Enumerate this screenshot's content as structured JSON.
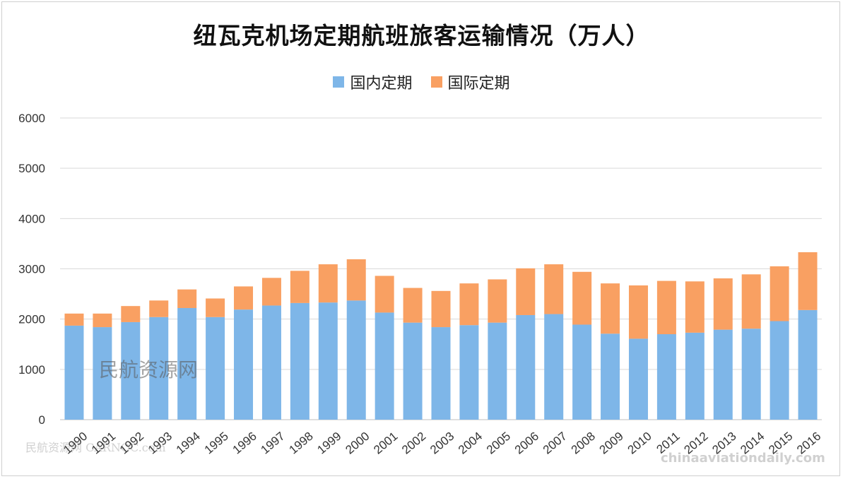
{
  "chart_data": {
    "type": "bar",
    "stacked": true,
    "title": "纽瓦克机场定期航班旅客运输情况（万人）",
    "xlabel": "",
    "ylabel": "",
    "ylim": [
      0,
      6000
    ],
    "yticks": [
      0,
      1000,
      2000,
      3000,
      4000,
      5000,
      6000
    ],
    "grid": true,
    "legend_position": "top",
    "categories": [
      "1990",
      "1991",
      "1992",
      "1993",
      "1994",
      "1995",
      "1996",
      "1997",
      "1998",
      "1999",
      "2000",
      "2001",
      "2002",
      "2003",
      "2004",
      "2005",
      "2006",
      "2007",
      "2008",
      "2009",
      "2010",
      "2011",
      "2012",
      "2013",
      "2014",
      "2015",
      "2016"
    ],
    "series": [
      {
        "name": "国内定期",
        "color": "#7eb6e8",
        "values": [
          1870,
          1840,
          1940,
          2040,
          2220,
          2040,
          2190,
          2270,
          2320,
          2330,
          2370,
          2130,
          1930,
          1840,
          1880,
          1930,
          2080,
          2100,
          1890,
          1710,
          1610,
          1700,
          1730,
          1790,
          1810,
          1960,
          2180
        ]
      },
      {
        "name": "国际定期",
        "color": "#f9a062",
        "values": [
          240,
          270,
          320,
          330,
          370,
          370,
          460,
          550,
          640,
          760,
          820,
          730,
          690,
          720,
          830,
          860,
          930,
          990,
          1050,
          1000,
          1060,
          1060,
          1020,
          1020,
          1080,
          1090,
          1150
        ]
      }
    ]
  },
  "watermarks": [
    "民航资源网",
    "民航资源网 CARNOC.com",
    "chinaaviationdaily.com"
  ]
}
